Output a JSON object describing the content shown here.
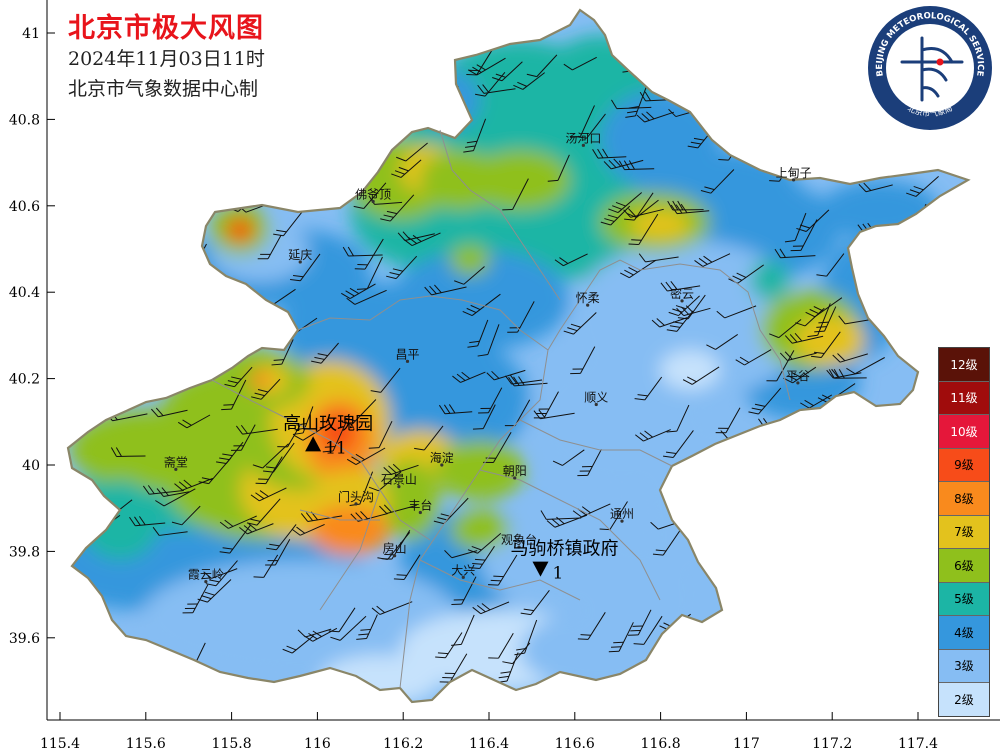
{
  "title": "北京市极大风图",
  "subtitle": "2024年11月03日11时",
  "producer": "北京市气象数据中心制",
  "logo": {
    "text": "BEIJING METEOROLOGICAL SERVICE",
    "text_cn": "北京市气象局",
    "color": "#1b3e7a"
  },
  "axes": {
    "x_ticks": [
      "115.4",
      "115.6",
      "115.8",
      "116",
      "116.2",
      "116.4",
      "116.6",
      "116.8",
      "117",
      "117.2",
      "117.4"
    ],
    "y_ticks": [
      "41",
      "40.8",
      "40.6",
      "40.4",
      "40.2",
      "40",
      "39.8",
      "39.6"
    ]
  },
  "legend": [
    {
      "label": "12级",
      "color": "#5a1208",
      "text": "#ffffff"
    },
    {
      "label": "11级",
      "color": "#a00c0c",
      "text": "#ffffff"
    },
    {
      "label": "10级",
      "color": "#e5173a",
      "text": "#ffffff"
    },
    {
      "label": "9级",
      "color": "#f74c19",
      "text": "#000000"
    },
    {
      "label": "8级",
      "color": "#f98a1d",
      "text": "#000000"
    },
    {
      "label": "7级",
      "color": "#e3c21d",
      "text": "#000000"
    },
    {
      "label": "6级",
      "color": "#8fc01c",
      "text": "#000000"
    },
    {
      "label": "5级",
      "color": "#1cb5a5",
      "text": "#000000"
    },
    {
      "label": "4级",
      "color": "#3597dd",
      "text": "#000000"
    },
    {
      "label": "3级",
      "color": "#86bdf3",
      "text": "#000000"
    },
    {
      "label": "2级",
      "color": "#c6e2fc",
      "text": "#000000"
    }
  ],
  "places": [
    {
      "name": "汤河口",
      "lon": 116.62,
      "lat": 40.74
    },
    {
      "name": "上甸子",
      "lon": 117.11,
      "lat": 40.66
    },
    {
      "name": "佛爷顶",
      "lon": 116.13,
      "lat": 40.61
    },
    {
      "name": "延庆",
      "lon": 115.96,
      "lat": 40.47
    },
    {
      "name": "怀柔",
      "lon": 116.63,
      "lat": 40.37
    },
    {
      "name": "密云",
      "lon": 116.85,
      "lat": 40.38
    },
    {
      "name": "昌平",
      "lon": 116.21,
      "lat": 40.24
    },
    {
      "name": "平谷",
      "lon": 117.12,
      "lat": 40.19
    },
    {
      "name": "顺义",
      "lon": 116.65,
      "lat": 40.14
    },
    {
      "name": "海淀",
      "lon": 116.29,
      "lat": 40.0
    },
    {
      "name": "朝阳",
      "lon": 116.46,
      "lat": 39.97
    },
    {
      "name": "斋堂",
      "lon": 115.67,
      "lat": 39.99
    },
    {
      "name": "石景山",
      "lon": 116.19,
      "lat": 39.95
    },
    {
      "name": "门头沟",
      "lon": 116.09,
      "lat": 39.91
    },
    {
      "name": "丰台",
      "lon": 116.24,
      "lat": 39.89
    },
    {
      "name": "通州",
      "lon": 116.71,
      "lat": 39.87
    },
    {
      "name": "观象台",
      "lon": 116.47,
      "lat": 39.81
    },
    {
      "name": "房山",
      "lon": 116.18,
      "lat": 39.79
    },
    {
      "name": "霞云岭",
      "lon": 115.74,
      "lat": 39.73
    },
    {
      "name": "大兴",
      "lon": 116.34,
      "lat": 39.74
    }
  ],
  "extremes": [
    {
      "name": "高山玫瑰园",
      "lon": 115.99,
      "lat": 40.05,
      "value": "11",
      "kind": "max"
    },
    {
      "name": "马驹桥镇政府",
      "lon": 116.52,
      "lat": 39.76,
      "value": "1",
      "kind": "min"
    }
  ]
}
